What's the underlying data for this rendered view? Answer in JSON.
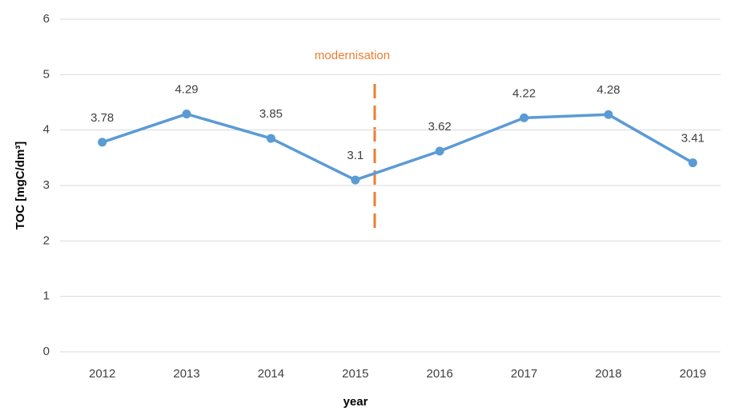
{
  "chart_data": {
    "type": "line",
    "x_label": "year",
    "y_label": "TOC [mgC/dm³]",
    "categories": [
      "2012",
      "2013",
      "2014",
      "2015",
      "2016",
      "2017",
      "2018",
      "2019"
    ],
    "series": [
      {
        "name": "TOC",
        "color": "#5b9bd5",
        "values": [
          3.78,
          4.29,
          3.85,
          3.1,
          3.62,
          4.22,
          4.28,
          3.41
        ]
      }
    ],
    "ylim": [
      0,
      6
    ],
    "yticks": [
      0,
      1,
      2,
      3,
      4,
      5,
      6
    ],
    "grid": true,
    "annotation": {
      "text": "modernisation",
      "color": "#ed7d31"
    }
  }
}
